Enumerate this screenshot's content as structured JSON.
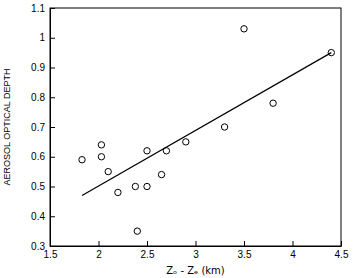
{
  "chart_data": {
    "type": "scatter",
    "x_label": "Zₒ - Zₑ (km)",
    "y_label": "AEROSOL OPTICAL DEPTH",
    "xlim": [
      1.5,
      4.5
    ],
    "xticks": [
      1.5,
      2,
      2.5,
      3,
      3.5,
      4,
      4.5
    ],
    "ylim": [
      0.3,
      1.1
    ],
    "yticks": [
      0.3,
      0.4,
      0.5,
      0.6,
      0.7,
      0.8,
      0.9,
      1,
      1.1
    ],
    "grid": false,
    "series": [
      {
        "type": "scatter",
        "marker": "circle",
        "color": "#000000",
        "x": [
          1.83,
          2.03,
          2.03,
          2.1,
          2.2,
          2.38,
          2.4,
          2.5,
          2.5,
          2.65,
          2.7,
          2.9,
          3.3,
          3.5,
          3.8,
          4.4
        ],
        "values": [
          0.59,
          0.64,
          0.6,
          0.55,
          0.48,
          0.5,
          0.35,
          0.62,
          0.5,
          0.54,
          0.62,
          0.65,
          0.7,
          1.03,
          0.78,
          0.95
        ]
      },
      {
        "type": "line",
        "line_style": "solid",
        "color": "#000000",
        "x": [
          1.83,
          4.4
        ],
        "values": [
          0.47,
          0.95
        ]
      }
    ]
  }
}
